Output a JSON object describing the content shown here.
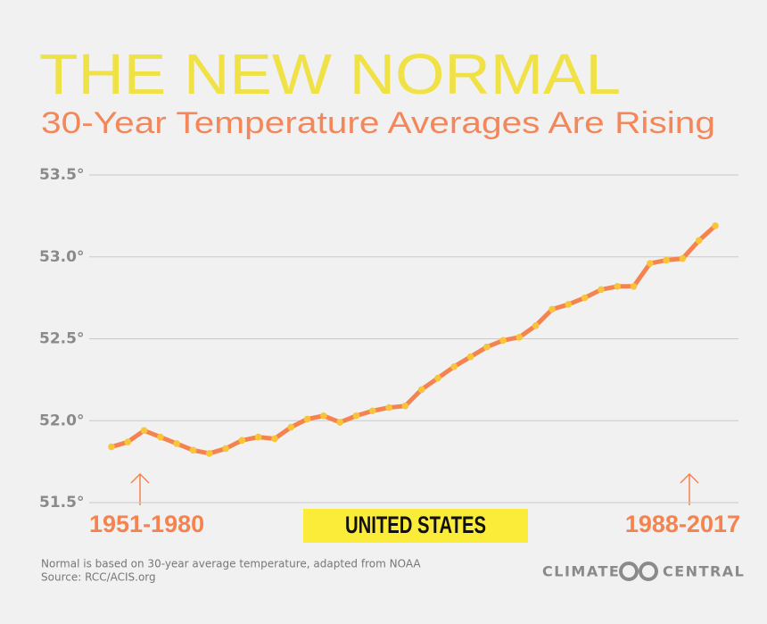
{
  "chart_data": {
    "type": "line",
    "title": "THE NEW NORMAL",
    "subtitle": "30-Year Temperature Averages Are Rising",
    "region_label": "UNITED STATES",
    "notes": [
      "Normal is based on 30-year average temperature, adapted from NOAA",
      "Source: RCC/ACIS.org"
    ],
    "logo": [
      "CLIMATE",
      "CENTRAL"
    ],
    "categories": [
      "1951-1980",
      null,
      null,
      null,
      null,
      null,
      null,
      null,
      null,
      null,
      null,
      null,
      null,
      null,
      null,
      null,
      null,
      null,
      null,
      null,
      null,
      null,
      null,
      null,
      null,
      null,
      null,
      null,
      null,
      null,
      null,
      null,
      null,
      null,
      null,
      null,
      null,
      "1988-2017"
    ],
    "series": [
      {
        "color": "#f5834f",
        "marker_color": "#f7c43a",
        "values": [
          51.84,
          51.87,
          51.94,
          51.9,
          51.86,
          51.82,
          51.8,
          51.83,
          51.88,
          51.9,
          51.89,
          51.96,
          52.01,
          52.03,
          51.99,
          52.03,
          52.06,
          52.08,
          52.09,
          52.19,
          52.26,
          52.33,
          52.39,
          52.45,
          52.49,
          52.51,
          52.58,
          52.68,
          52.71,
          52.75,
          52.8,
          52.82,
          52.82,
          52.96,
          52.98,
          52.99,
          53.1,
          53.19
        ]
      }
    ],
    "ylim": [
      51.5,
      53.5
    ],
    "yticks": [
      {
        "value": 51.5,
        "label": "51.5°"
      },
      {
        "value": 52.0,
        "label": "52.0°"
      },
      {
        "value": 52.5,
        "label": "52.5°"
      },
      {
        "value": 53.0,
        "label": "53.0°"
      },
      {
        "value": 53.5,
        "label": "53.5°"
      }
    ],
    "grid": true
  }
}
